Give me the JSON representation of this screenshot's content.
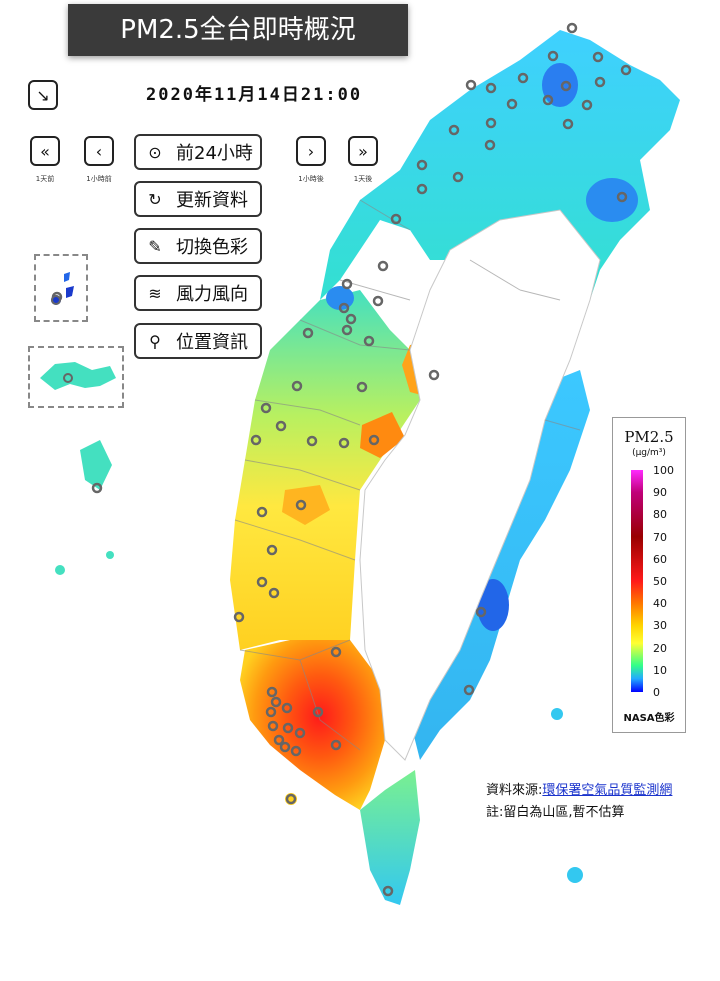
{
  "title": "PM2.5全台即時概況",
  "datetime": "2020年11月14日21:00",
  "nav": {
    "prev_day_label": "1天前",
    "prev_hour_label": "1小時前",
    "next_hour_label": "1小時後",
    "next_day_label": "1天後"
  },
  "actions": {
    "past24": "前24小時",
    "refresh": "更新資料",
    "color": "切換色彩",
    "wind": "風力風向",
    "location": "位置資訊"
  },
  "legend": {
    "title": "PM2.5",
    "unit": "(µg/m³)",
    "ticks": [
      "100",
      "90",
      "80",
      "70",
      "60",
      "50",
      "40",
      "30",
      "20",
      "10",
      "0"
    ],
    "footer": "NASA色彩",
    "colors": [
      "#0000ff",
      "#22aaff",
      "#33ff88",
      "#ffff33",
      "#ffd400",
      "#ff7700",
      "#ff1a1a",
      "#990000",
      "#c0007a",
      "#ff2bff"
    ]
  },
  "source": {
    "label": "資料來源:",
    "link": "環保署空氣品質監測網",
    "note": "註:留白為山區,暫不估算"
  }
}
